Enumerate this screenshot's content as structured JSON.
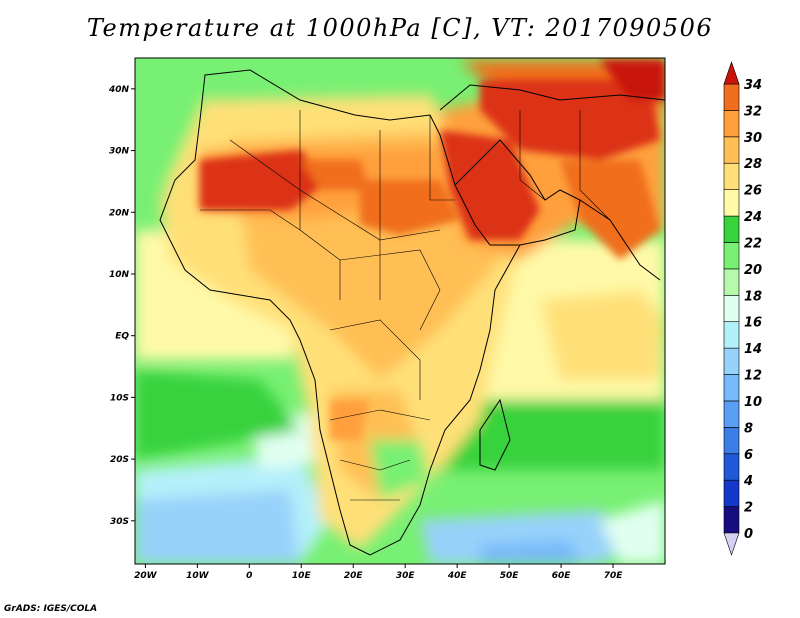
{
  "title": "Temperature at 1000hPa [C], VT: 2017090506",
  "footer": "GrADS: IGES/COLA",
  "map": {
    "lon_range": [
      -22,
      80
    ],
    "lat_range": [
      -37,
      45
    ],
    "lon_ticks": [
      {
        "value": -20,
        "label": "20W"
      },
      {
        "value": -10,
        "label": "10W"
      },
      {
        "value": 0,
        "label": "0"
      },
      {
        "value": 10,
        "label": "10E"
      },
      {
        "value": 20,
        "label": "20E"
      },
      {
        "value": 30,
        "label": "30E"
      },
      {
        "value": 40,
        "label": "40E"
      },
      {
        "value": 50,
        "label": "50E"
      },
      {
        "value": 60,
        "label": "60E"
      },
      {
        "value": 70,
        "label": "70E"
      }
    ],
    "lat_ticks": [
      {
        "value": 40,
        "label": "40N"
      },
      {
        "value": 30,
        "label": "30N"
      },
      {
        "value": 20,
        "label": "20N"
      },
      {
        "value": 10,
        "label": "10N"
      },
      {
        "value": 0,
        "label": "EQ"
      },
      {
        "value": -10,
        "label": "10S"
      },
      {
        "value": -20,
        "label": "20S"
      },
      {
        "value": -30,
        "label": "30S"
      }
    ]
  },
  "colorbar": {
    "levels": [
      {
        "value": 0,
        "label": "0",
        "color": "#160e80"
      },
      {
        "value": 2,
        "label": "2",
        "color": "#1438c8"
      },
      {
        "value": 4,
        "label": "4",
        "color": "#1e5ad7"
      },
      {
        "value": 6,
        "label": "6",
        "color": "#3c7ee8"
      },
      {
        "value": 8,
        "label": "8",
        "color": "#5a9ff5"
      },
      {
        "value": 10,
        "label": "10",
        "color": "#78b9fa"
      },
      {
        "value": 12,
        "label": "12",
        "color": "#97d2fa"
      },
      {
        "value": 14,
        "label": "14",
        "color": "#b4f0fa"
      },
      {
        "value": 16,
        "label": "16",
        "color": "#e1fff0"
      },
      {
        "value": 18,
        "label": "18",
        "color": "#b4faaa"
      },
      {
        "value": 20,
        "label": "20",
        "color": "#78f073"
      },
      {
        "value": 22,
        "label": "22",
        "color": "#37d23c"
      },
      {
        "value": 24,
        "label": "24",
        "color": "#fff9a8"
      },
      {
        "value": 26,
        "label": "26",
        "color": "#ffe078"
      },
      {
        "value": 28,
        "label": "28",
        "color": "#ffbf55"
      },
      {
        "value": 30,
        "label": "30",
        "color": "#ffa03c"
      },
      {
        "value": 32,
        "label": "32",
        "color": "#f06e1e"
      },
      {
        "value": 34,
        "label": "34",
        "color": "#dc3214"
      }
    ],
    "under_color": "#d8cff5",
    "over_color": "#c8140a"
  }
}
